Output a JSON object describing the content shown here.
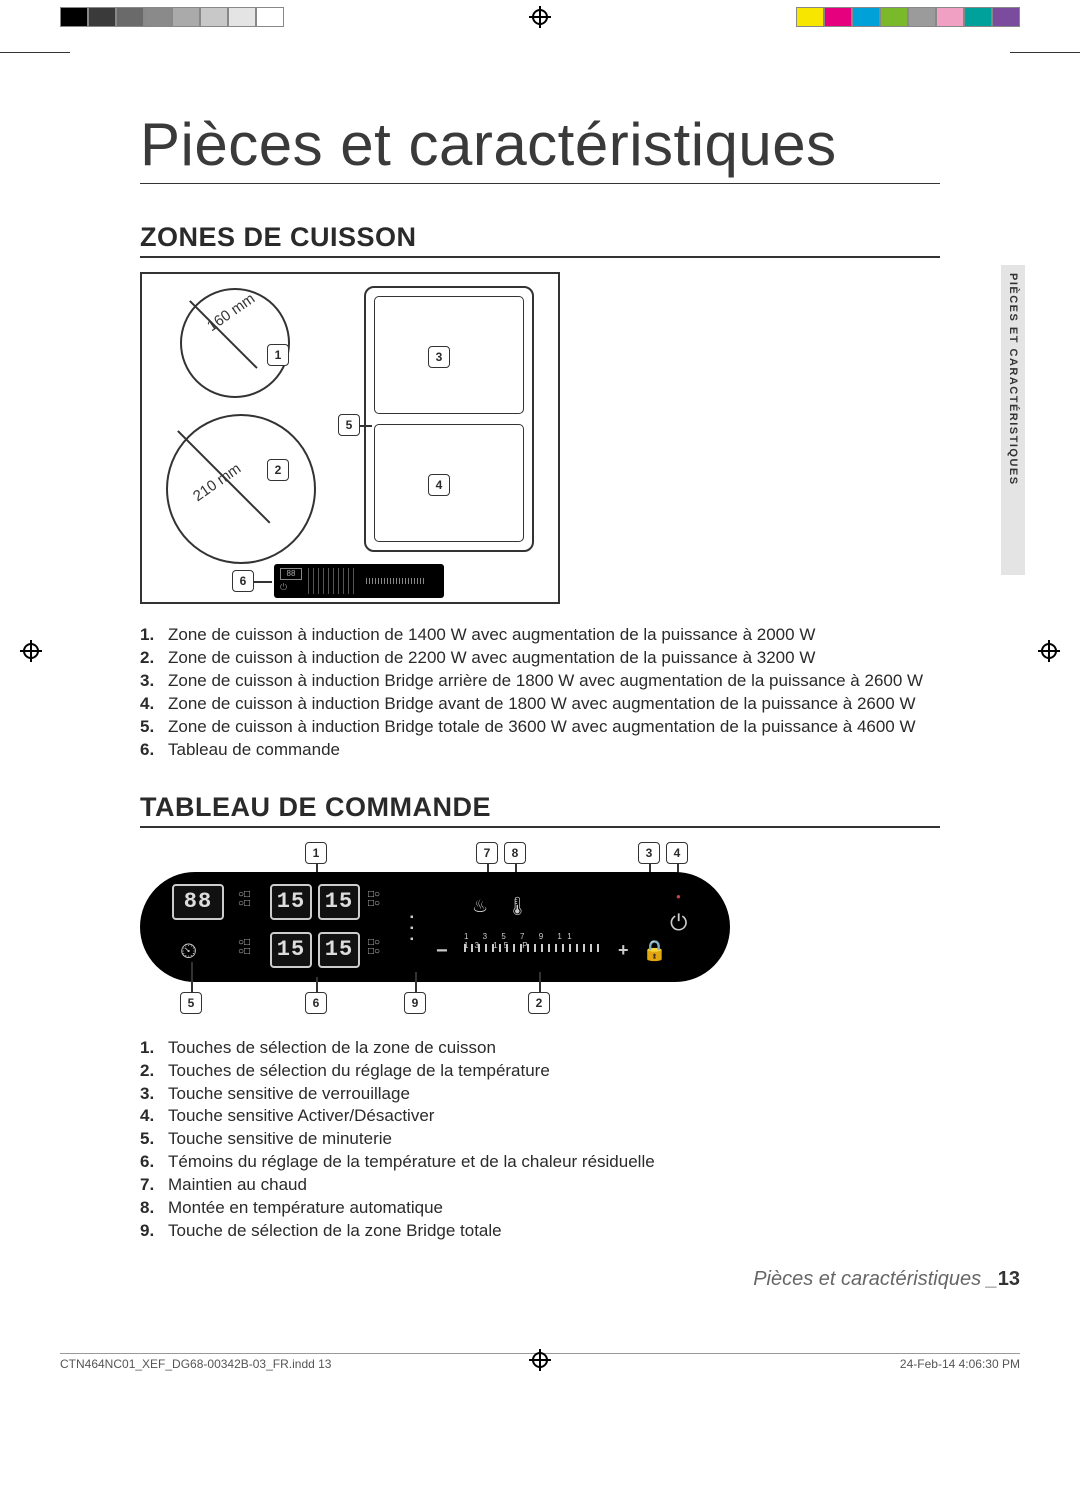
{
  "color_bar": {
    "left_swatches": [
      "#000000",
      "#3a3a3a",
      "#6a6a6a",
      "#8a8a8a",
      "#aaaaaa",
      "#c8c8c8",
      "#e4e4e4",
      "#ffffff"
    ],
    "right_swatches": [
      "#f6e600",
      "#e6007e",
      "#00a0d8",
      "#7aba2a",
      "#9b9b9b",
      "#f0a0c2",
      "#00a19a",
      "#7b4b9e"
    ]
  },
  "side_tab": "PIÈCES ET CARACTÉRISTIQUES",
  "page_title": "Pièces et caractéristiques",
  "zones": {
    "heading": "ZONES DE CUISSON",
    "labels": {
      "small_diam": "160 mm",
      "large_diam": "210 mm"
    },
    "markers": [
      "1",
      "2",
      "3",
      "4",
      "5",
      "6"
    ],
    "legend": [
      "Zone de cuisson à induction de 1400 W avec augmentation de la puissance à 2000 W",
      "Zone de cuisson à induction de 2200 W avec augmentation de la puissance à 3200 W",
      "Zone de cuisson à induction Bridge arrière de 1800 W avec augmentation de la puissance à 2600 W",
      "Zone de cuisson à induction Bridge avant de 1800 W avec augmentation de la puissance à 2600 W",
      "Zone de cuisson à induction Bridge totale de 3600 W avec augmentation de la puissance à 4600 W",
      "Tableau de commande"
    ]
  },
  "panel": {
    "heading": "TABLEAU DE COMMANDE",
    "markers_top": [
      "1",
      "7",
      "8",
      "3",
      "4"
    ],
    "markers_bottom": [
      "5",
      "6",
      "9",
      "2"
    ],
    "seg_88": "88",
    "seg_15": "15",
    "slider_labels": "1  3  5  7  9  11 13 15 P",
    "minus": "−",
    "plus": "+",
    "legend": [
      "Touches de sélection de la zone de cuisson",
      "Touches de sélection du réglage de la température",
      "Touche sensitive de verrouillage",
      "Touche sensitive Activer/Désactiver",
      "Touche sensitive de minuterie",
      "Témoins du réglage de la température et de la chaleur résiduelle",
      "Maintien au chaud",
      "Montée en température automatique",
      "Touche de sélection de la zone Bridge totale"
    ]
  },
  "footer": {
    "title": "Pièces et caractéristiques _",
    "page_number": "13",
    "file": "CTN464NC01_XEF_DG68-00342B-03_FR.indd   13",
    "timestamp": "24-Feb-14   4:06:30 PM"
  }
}
